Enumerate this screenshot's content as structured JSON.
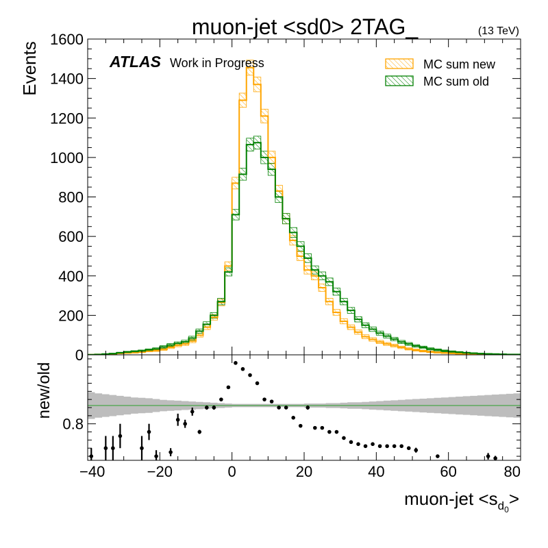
{
  "chart_data": {
    "type": "histogram-with-ratio",
    "title": "muon-jet <sd0> 2TAG_",
    "energy_label": "(13 TeV)",
    "experiment_label": "ATLAS",
    "status_label": "Work in Progress",
    "xlabel_main": "muon-jet <s",
    "xlabel_sub": "d",
    "xlabel_subsub": "0",
    "xlabel_close": ">",
    "ylabel": "Events",
    "ratio_ylabel": "new/old",
    "xlim": [
      -40,
      80
    ],
    "ylim": [
      0,
      1600
    ],
    "ratio_ylim": [
      0.71,
      0.97
    ],
    "x_ticks": [
      -40,
      -20,
      0,
      20,
      40,
      60,
      80
    ],
    "x_tick_labels": [
      "−40",
      "−20",
      "0",
      "20",
      "40",
      "60",
      "80"
    ],
    "y_ticks": [
      0,
      200,
      400,
      600,
      800,
      1000,
      1200,
      1400,
      1600
    ],
    "y_tick_labels": [
      "0",
      "200",
      "400",
      "600",
      "800",
      "1000",
      "1200",
      "1400",
      "1600"
    ],
    "ratio_y_ticks": [
      0.8
    ],
    "ratio_y_tick_labels": [
      "0.8"
    ],
    "ratio_reference": 0.845,
    "bin_edges": [
      -40,
      -38,
      -36,
      -34,
      -32,
      -30,
      -28,
      -26,
      -24,
      -22,
      -20,
      -18,
      -16,
      -14,
      -12,
      -10,
      -8,
      -6,
      -4,
      -2,
      0,
      2,
      4,
      6,
      8,
      10,
      12,
      14,
      16,
      18,
      20,
      22,
      24,
      26,
      28,
      30,
      32,
      34,
      36,
      38,
      40,
      42,
      44,
      46,
      48,
      50,
      52,
      54,
      56,
      58,
      60,
      62,
      64,
      66,
      68,
      70,
      72,
      74,
      76,
      78,
      80
    ],
    "legend_position": "top-right",
    "series": [
      {
        "name": "MC sum new",
        "color": "#ffa500",
        "values": [
          1,
          2,
          3,
          4,
          8,
          10,
          12,
          15,
          20,
          22,
          28,
          38,
          48,
          55,
          70,
          100,
          140,
          190,
          265,
          450,
          870,
          1290,
          1455,
          1370,
          1210,
          1000,
          830,
          690,
          580,
          500,
          430,
          400,
          340,
          270,
          215,
          170,
          140,
          115,
          92,
          78,
          65,
          55,
          47,
          38,
          30,
          24,
          19,
          15,
          12,
          10,
          8,
          6,
          5,
          4,
          3,
          2,
          2,
          1,
          1,
          1
        ]
      },
      {
        "name": "MC sum old",
        "color": "#008000",
        "values": [
          1,
          2,
          4,
          6,
          10,
          14,
          17,
          20,
          25,
          30,
          40,
          50,
          58,
          66,
          85,
          120,
          155,
          200,
          270,
          420,
          710,
          915,
          1065,
          1075,
          1000,
          940,
          800,
          690,
          620,
          550,
          490,
          430,
          400,
          370,
          320,
          270,
          225,
          180,
          150,
          130,
          110,
          95,
          80,
          65,
          55,
          45,
          38,
          30,
          25,
          20,
          16,
          13,
          10,
          8,
          6,
          5,
          4,
          3,
          2,
          2
        ]
      }
    ],
    "ratio_band_halfwidth": [
      0.033,
      0.03,
      0.028,
      0.026,
      0.024,
      0.022,
      0.02,
      0.019,
      0.018,
      0.016,
      0.014,
      0.013,
      0.012,
      0.011,
      0.01,
      0.009,
      0.008,
      0.007,
      0.006,
      0.005,
      0.004,
      0.004,
      0.004,
      0.004,
      0.004,
      0.004,
      0.004,
      0.004,
      0.004,
      0.004,
      0.005,
      0.005,
      0.005,
      0.006,
      0.006,
      0.007,
      0.008,
      0.008,
      0.009,
      0.01,
      0.011,
      0.012,
      0.013,
      0.014,
      0.015,
      0.016,
      0.017,
      0.018,
      0.019,
      0.02,
      0.021,
      0.022,
      0.023,
      0.024,
      0.025,
      0.026,
      0.027,
      0.028,
      0.029,
      0.03
    ],
    "ratio_points": [
      {
        "x": -39,
        "y": 0.72,
        "err": 0.02
      },
      {
        "x": -35,
        "y": 0.74,
        "err": 0.03
      },
      {
        "x": -33,
        "y": 0.74,
        "err": 0.03
      },
      {
        "x": -31,
        "y": 0.77,
        "err": 0.03
      },
      {
        "x": -25,
        "y": 0.74,
        "err": 0.03
      },
      {
        "x": -23,
        "y": 0.78,
        "err": 0.02
      },
      {
        "x": -21,
        "y": 0.72,
        "err": 0.015
      },
      {
        "x": -17,
        "y": 0.73,
        "err": 0.01
      },
      {
        "x": -15,
        "y": 0.81,
        "err": 0.015
      },
      {
        "x": -13,
        "y": 0.8,
        "err": 0.01
      },
      {
        "x": -11,
        "y": 0.83,
        "err": 0.01
      },
      {
        "x": -9,
        "y": 0.78,
        "err": 0.005
      },
      {
        "x": -7,
        "y": 0.84,
        "err": 0.005
      },
      {
        "x": -5,
        "y": 0.84,
        "err": 0.005
      },
      {
        "x": -3,
        "y": 0.86,
        "err": 0.004
      },
      {
        "x": -1,
        "y": 0.89,
        "err": 0.004
      },
      {
        "x": 1,
        "y": 0.95,
        "err": 0.003
      },
      {
        "x": 3,
        "y": 0.935,
        "err": 0.003
      },
      {
        "x": 5,
        "y": 0.92,
        "err": 0.003
      },
      {
        "x": 7,
        "y": 0.9,
        "err": 0.003
      },
      {
        "x": 9,
        "y": 0.86,
        "err": 0.003
      },
      {
        "x": 11,
        "y": 0.855,
        "err": 0.003
      },
      {
        "x": 13,
        "y": 0.84,
        "err": 0.003
      },
      {
        "x": 15,
        "y": 0.84,
        "err": 0.003
      },
      {
        "x": 17,
        "y": 0.815,
        "err": 0.003
      },
      {
        "x": 19,
        "y": 0.795,
        "err": 0.003
      },
      {
        "x": 21,
        "y": 0.84,
        "err": 0.005
      },
      {
        "x": 23,
        "y": 0.79,
        "err": 0.004
      },
      {
        "x": 25,
        "y": 0.79,
        "err": 0.004
      },
      {
        "x": 27,
        "y": 0.78,
        "err": 0.004
      },
      {
        "x": 29,
        "y": 0.78,
        "err": 0.004
      },
      {
        "x": 31,
        "y": 0.765,
        "err": 0.004
      },
      {
        "x": 33,
        "y": 0.755,
        "err": 0.004
      },
      {
        "x": 35,
        "y": 0.75,
        "err": 0.004
      },
      {
        "x": 37,
        "y": 0.745,
        "err": 0.004
      },
      {
        "x": 39,
        "y": 0.75,
        "err": 0.004
      },
      {
        "x": 41,
        "y": 0.745,
        "err": 0.004
      },
      {
        "x": 43,
        "y": 0.745,
        "err": 0.004
      },
      {
        "x": 45,
        "y": 0.745,
        "err": 0.004
      },
      {
        "x": 47,
        "y": 0.745,
        "err": 0.004
      },
      {
        "x": 49,
        "y": 0.74,
        "err": 0.004
      },
      {
        "x": 51,
        "y": 0.735,
        "err": 0.006
      },
      {
        "x": 57,
        "y": 0.72,
        "err": 0.004
      },
      {
        "x": 71,
        "y": 0.72,
        "err": 0.008
      },
      {
        "x": 73,
        "y": 0.715,
        "err": 0.006
      }
    ]
  }
}
